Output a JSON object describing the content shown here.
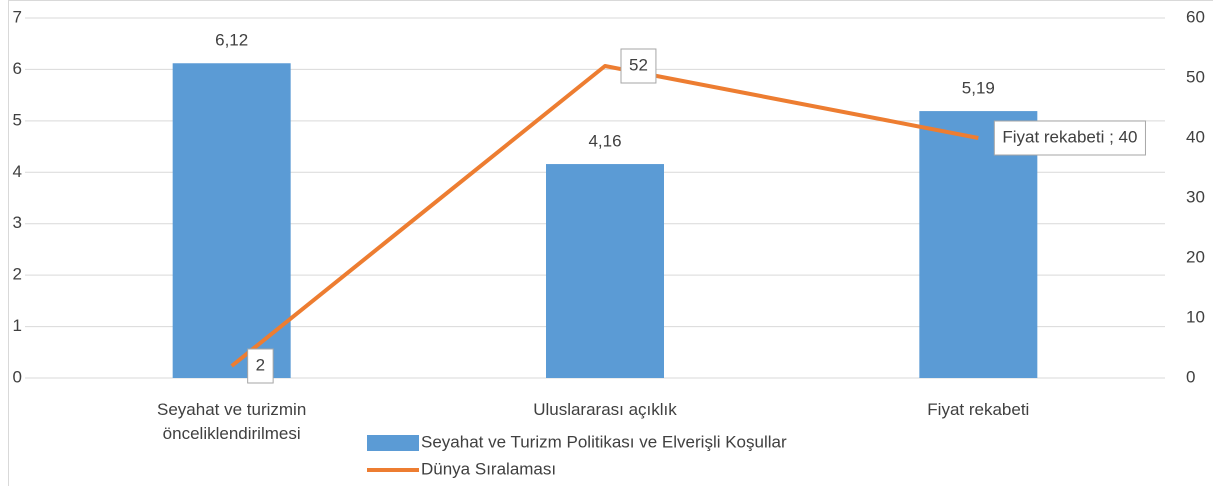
{
  "chart_data": {
    "type": "bar_line",
    "categories": [
      "Seyahat ve turizmin önceliklendirilmesi",
      "Uluslararası açıklık",
      "Fiyat rekabeti"
    ],
    "series": [
      {
        "name": "Seyahat ve Turizm Politikası ve Elverişli Koşullar",
        "type": "bar",
        "color": "#5b9bd5",
        "values": [
          6.12,
          4.16,
          5.19
        ],
        "value_labels": [
          "6,12",
          "4,16",
          "5,19"
        ]
      },
      {
        "name": "Dünya Sıralaması",
        "type": "line",
        "axis": "y2",
        "color": "#ed7d31",
        "values": [
          2,
          52,
          40
        ],
        "value_labels": [
          "2",
          "52",
          "Fiyat rekabeti ; 40"
        ]
      }
    ],
    "ylim": [
      0,
      7
    ],
    "yticks": [
      0,
      1,
      2,
      3,
      4,
      5,
      6,
      7
    ],
    "y2lim": [
      0,
      60
    ],
    "y2ticks": [
      0,
      10,
      20,
      30,
      40,
      50,
      60
    ],
    "grid": true,
    "legend": "bottom"
  }
}
